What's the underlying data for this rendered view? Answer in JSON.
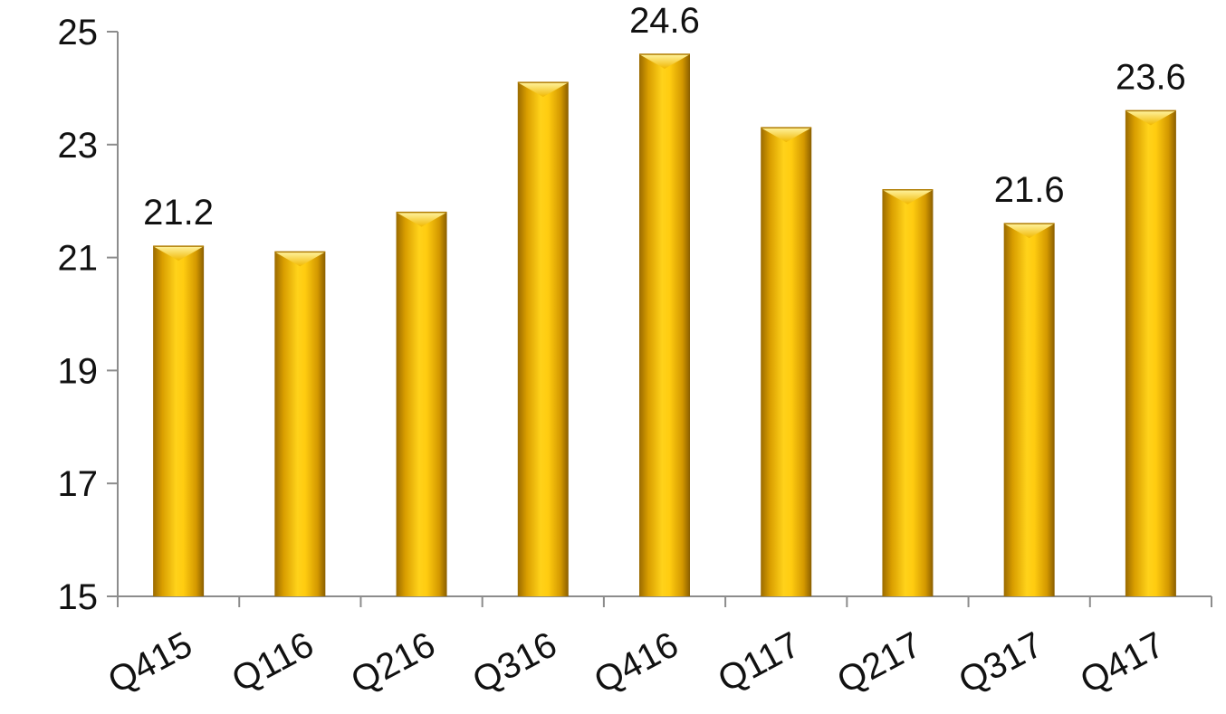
{
  "chart_data": {
    "type": "bar",
    "categories": [
      "Q415",
      "Q116",
      "Q216",
      "Q316",
      "Q416",
      "Q117",
      "Q217",
      "Q317",
      "Q417"
    ],
    "values": [
      21.2,
      21.1,
      21.8,
      24.1,
      24.6,
      23.3,
      22.2,
      21.6,
      23.6
    ],
    "data_labels": [
      "21.2",
      "",
      "",
      "",
      "24.6",
      "",
      "",
      "21.6",
      "23.6"
    ],
    "yticks": [
      15,
      17,
      19,
      21,
      23,
      25
    ],
    "ylim": [
      15,
      25
    ],
    "title": "",
    "xlabel": "",
    "ylabel": "",
    "grid": false,
    "legend": "none",
    "bar_color": "#E8A800",
    "axis_color": "#8c8c8c"
  }
}
